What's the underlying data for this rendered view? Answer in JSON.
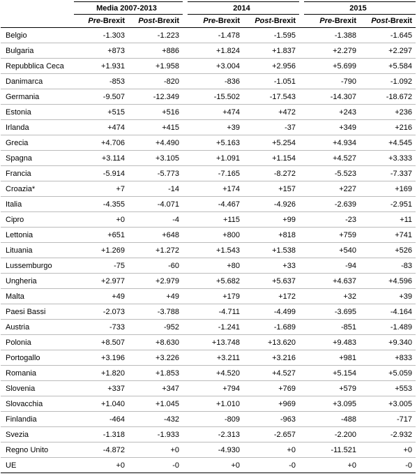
{
  "table": {
    "groups": [
      "Media 2007-2013",
      "2014",
      "2015"
    ],
    "subheaders": [
      {
        "em": "Pre",
        "rest": "-Brexit"
      },
      {
        "em": "Post",
        "rest": "-Brexit"
      },
      {
        "em": "Pre",
        "rest": "-Brexit"
      },
      {
        "em": "Post",
        "rest": "-Brexit"
      },
      {
        "em": "Pre",
        "rest": "-Brexit"
      },
      {
        "em": "Post",
        "rest": "-Brexit"
      }
    ],
    "rows": [
      [
        "Belgio",
        "-1.303",
        "-1.223",
        "-1.478",
        "-1.595",
        "-1.388",
        "-1.645"
      ],
      [
        "Bulgaria",
        "+873",
        "+886",
        "+1.824",
        "+1.837",
        "+2.279",
        "+2.297"
      ],
      [
        "Repubblica Ceca",
        "+1.931",
        "+1.958",
        "+3.004",
        "+2.956",
        "+5.699",
        "+5.584"
      ],
      [
        "Danimarca",
        "-853",
        "-820",
        "-836",
        "-1.051",
        "-790",
        "-1.092"
      ],
      [
        "Germania",
        "-9.507",
        "-12.349",
        "-15.502",
        "-17.543",
        "-14.307",
        "-18.672"
      ],
      [
        "Estonia",
        "+515",
        "+516",
        "+474",
        "+472",
        "+243",
        "+236"
      ],
      [
        "Irlanda",
        "+474",
        "+415",
        "+39",
        "-37",
        "+349",
        "+216"
      ],
      [
        "Grecia",
        "+4.706",
        "+4.490",
        "+5.163",
        "+5.254",
        "+4.934",
        "+4.545"
      ],
      [
        "Spagna",
        "+3.114",
        "+3.105",
        "+1.091",
        "+1.154",
        "+4.527",
        "+3.333"
      ],
      [
        "Francia",
        "-5.914",
        "-5.773",
        "-7.165",
        "-8.272",
        "-5.523",
        "-7.337"
      ],
      [
        "Croazia*",
        "+7",
        "-14",
        "+174",
        "+157",
        "+227",
        "+169"
      ],
      [
        "Italia",
        "-4.355",
        "-4.071",
        "-4.467",
        "-4.926",
        "-2.639",
        "-2.951"
      ],
      [
        "Cipro",
        "+0",
        "-4",
        "+115",
        "+99",
        "-23",
        "+11"
      ],
      [
        "Lettonia",
        "+651",
        "+648",
        "+800",
        "+818",
        "+759",
        "+741"
      ],
      [
        "Lituania",
        "+1.269",
        "+1.272",
        "+1.543",
        "+1.538",
        "+540",
        "+526"
      ],
      [
        "Lussemburgo",
        "-75",
        "-60",
        "+80",
        "+33",
        "-94",
        "-83"
      ],
      [
        "Ungheria",
        "+2.977",
        "+2.979",
        "+5.682",
        "+5.637",
        "+4.637",
        "+4.596"
      ],
      [
        "Malta",
        "+49",
        "+49",
        "+179",
        "+172",
        "+32",
        "+39"
      ],
      [
        "Paesi Bassi",
        "-2.073",
        "-3.788",
        "-4.711",
        "-4.499",
        "-3.695",
        "-4.164"
      ],
      [
        "Austria",
        "-733",
        "-952",
        "-1.241",
        "-1.689",
        "-851",
        "-1.489"
      ],
      [
        "Polonia",
        "+8.507",
        "+8.630",
        "+13.748",
        "+13.620",
        "+9.483",
        "+9.340"
      ],
      [
        "Portogallo",
        "+3.196",
        "+3.226",
        "+3.211",
        "+3.216",
        "+981",
        "+833"
      ],
      [
        "Romania",
        "+1.820",
        "+1.853",
        "+4.520",
        "+4.527",
        "+5.154",
        "+5.059"
      ],
      [
        "Slovenia",
        "+337",
        "+347",
        "+794",
        "+769",
        "+579",
        "+553"
      ],
      [
        "Slovacchia",
        "+1.040",
        "+1.045",
        "+1.010",
        "+969",
        "+3.095",
        "+3.005"
      ],
      [
        "Finlandia",
        "-464",
        "-432",
        "-809",
        "-963",
        "-488",
        "-717"
      ],
      [
        "Svezia",
        "-1.318",
        "-1.933",
        "-2.313",
        "-2.657",
        "-2.200",
        "-2.932"
      ],
      [
        "Regno Unito",
        "-4.872",
        "+0",
        "-4.930",
        "+0",
        "-11.521",
        "+0"
      ],
      [
        "UE",
        "+0",
        "-0",
        "+0",
        "-0",
        "+0",
        "-0"
      ]
    ]
  }
}
